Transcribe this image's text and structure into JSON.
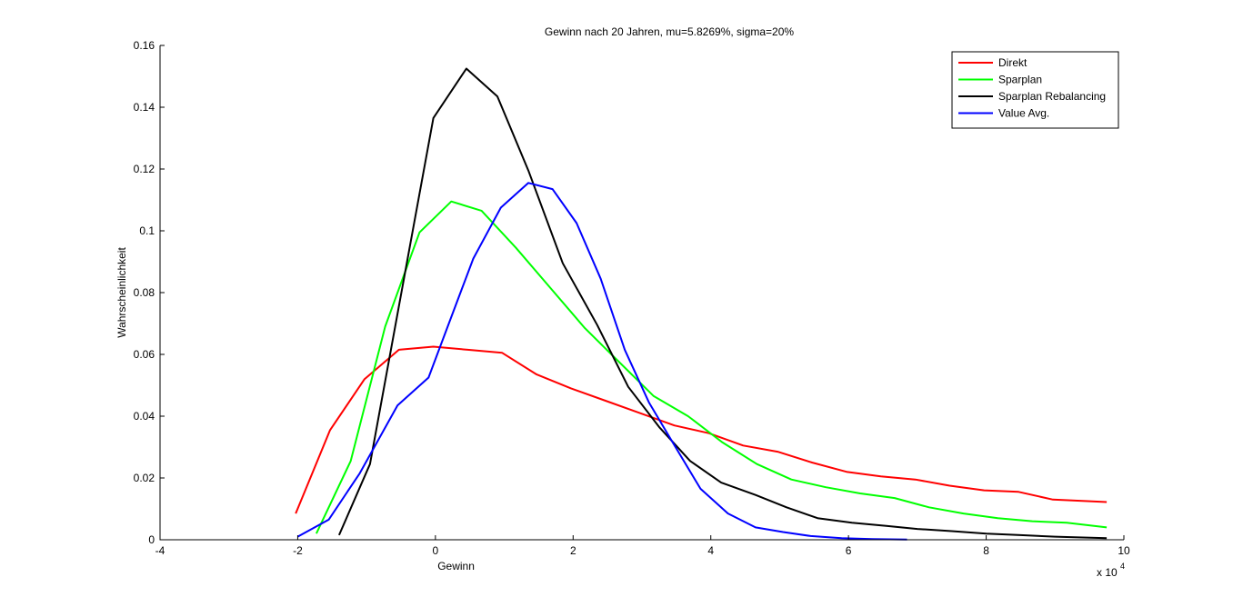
{
  "chart_data": {
    "type": "line",
    "title": "Gewinn nach 20 Jahren, mu=5.8269%, sigma=20%",
    "xlabel": "Gewinn",
    "ylabel": "Wahrscheinlichkeit",
    "x_multiplier_label": "x 10",
    "x_multiplier_exponent": "4",
    "xlim": [
      -40000,
      100000
    ],
    "ylim": [
      0,
      0.16
    ],
    "xticks": [
      -4,
      -2,
      0,
      2,
      4,
      6,
      8,
      10
    ],
    "xtick_labels": [
      "-4",
      "-2",
      "0",
      "2",
      "4",
      "6",
      "8",
      "10"
    ],
    "yticks": [
      0,
      0.02,
      0.04,
      0.06,
      0.08,
      0.1,
      0.12,
      0.14,
      0.16
    ],
    "ytick_labels": [
      "0",
      "0.02",
      "0.04",
      "0.06",
      "0.08",
      "0.1",
      "0.12",
      "0.14",
      "0.16"
    ],
    "grid": false,
    "legend_position": "top-right",
    "series": [
      {
        "name": "Direkt",
        "color": "#ff0000",
        "x": [
          -20300,
          -15300,
          -10300,
          -5300,
          -300,
          4700,
          9700,
          14700,
          19700,
          24700,
          29700,
          34700,
          39700,
          44700,
          49700,
          54700,
          59700,
          64700,
          69700,
          74700,
          79700,
          84700,
          89700,
          94700,
          97500
        ],
        "y": [
          0.0085,
          0.0355,
          0.052,
          0.0615,
          0.0625,
          0.0615,
          0.0605,
          0.0535,
          0.049,
          0.045,
          0.041,
          0.037,
          0.0345,
          0.0305,
          0.0285,
          0.025,
          0.022,
          0.0205,
          0.0195,
          0.0175,
          0.016,
          0.0155,
          0.013,
          0.0125,
          0.0122
        ]
      },
      {
        "name": "Sparplan",
        "color": "#00ff00",
        "x": [
          -17300,
          -12300,
          -7300,
          -2300,
          2300,
          6700,
          11700,
          16700,
          21700,
          26700,
          31700,
          36700,
          41700,
          46700,
          51700,
          56700,
          61700,
          66700,
          71700,
          76700,
          81700,
          86700,
          91700,
          97500
        ],
        "y": [
          0.002,
          0.0255,
          0.069,
          0.0995,
          0.1095,
          0.1065,
          0.0945,
          0.0815,
          0.0685,
          0.0575,
          0.0465,
          0.04,
          0.0315,
          0.0245,
          0.0195,
          0.017,
          0.015,
          0.0135,
          0.0105,
          0.0085,
          0.007,
          0.006,
          0.0055,
          0.004
        ]
      },
      {
        "name": "Sparplan Rebalancing",
        "color": "#000000",
        "x": [
          -14000,
          -9500,
          -300,
          4500,
          9000,
          13500,
          18500,
          23500,
          28000,
          32500,
          37000,
          41500,
          46500,
          51000,
          55500,
          60500,
          65500,
          70000,
          75000,
          80000,
          85000,
          90000,
          97500
        ],
        "y": [
          0.0015,
          0.0245,
          0.1365,
          0.1525,
          0.1435,
          0.1195,
          0.0895,
          0.0695,
          0.0495,
          0.0365,
          0.0255,
          0.0185,
          0.0145,
          0.0105,
          0.007,
          0.0055,
          0.0045,
          0.0035,
          0.0028,
          0.002,
          0.0015,
          0.001,
          0.0005
        ]
      },
      {
        "name": "Value Avg.",
        "color": "#0000ff",
        "x": [
          -20000,
          -15500,
          -11000,
          -5500,
          -1000,
          1700,
          5500,
          9500,
          13500,
          17000,
          20500,
          24000,
          27500,
          31000,
          35000,
          38500,
          42500,
          46500,
          50500,
          54500,
          59000,
          63500,
          68500
        ],
        "y": [
          0.001,
          0.0065,
          0.0215,
          0.0435,
          0.0525,
          0.0685,
          0.091,
          0.1075,
          0.1155,
          0.1135,
          0.1025,
          0.0845,
          0.0615,
          0.0445,
          0.0295,
          0.0165,
          0.0085,
          0.004,
          0.0025,
          0.0012,
          0.0005,
          0.0002,
          0.0001
        ]
      }
    ]
  }
}
